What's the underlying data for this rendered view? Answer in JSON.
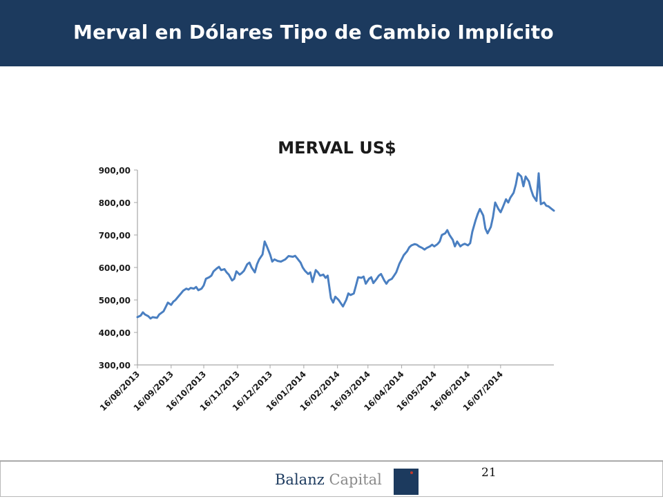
{
  "header": {
    "title": "Merval en Dólares Tipo de Cambio Implícito"
  },
  "footer": {
    "brand_primary": "Balanz",
    "brand_secondary": "Capital",
    "page_number": "21"
  },
  "colors": {
    "header_bg": "#1c3a5e",
    "line": "#4a7fc1",
    "axis": "#a6a6a6"
  },
  "chart_data": {
    "type": "line",
    "title": "MERVAL US$",
    "xlabel": "",
    "ylabel": "",
    "ylim": [
      300,
      900
    ],
    "yticks": [
      "300,00",
      "400,00",
      "500,00",
      "600,00",
      "700,00",
      "800,00",
      "900,00"
    ],
    "xticks": [
      "16/08/2013",
      "16/09/2013",
      "16/10/2013",
      "16/11/2013",
      "16/12/2013",
      "16/01/2014",
      "16/02/2014",
      "16/03/2014",
      "16/04/2014",
      "16/05/2014",
      "16/06/2014",
      "16/07/2014"
    ],
    "grid": false,
    "legend": "none",
    "series": [
      {
        "points": [
          [
            "2013-08-16",
            447
          ],
          [
            "2013-08-19",
            452
          ],
          [
            "2013-08-21",
            462
          ],
          [
            "2013-08-23",
            455
          ],
          [
            "2013-08-26",
            450
          ],
          [
            "2013-08-28",
            443
          ],
          [
            "2013-08-30",
            447
          ],
          [
            "2013-09-03",
            445
          ],
          [
            "2013-09-05",
            455
          ],
          [
            "2013-09-09",
            465
          ],
          [
            "2013-09-11",
            478
          ],
          [
            "2013-09-13",
            492
          ],
          [
            "2013-09-16",
            485
          ],
          [
            "2013-09-18",
            495
          ],
          [
            "2013-09-20",
            500
          ],
          [
            "2013-09-23",
            512
          ],
          [
            "2013-09-25",
            520
          ],
          [
            "2013-09-27",
            528
          ],
          [
            "2013-09-30",
            535
          ],
          [
            "2013-10-02",
            532
          ],
          [
            "2013-10-04",
            537
          ],
          [
            "2013-10-07",
            535
          ],
          [
            "2013-10-09",
            540
          ],
          [
            "2013-10-11",
            530
          ],
          [
            "2013-10-14",
            535
          ],
          [
            "2013-10-16",
            545
          ],
          [
            "2013-10-18",
            565
          ],
          [
            "2013-10-21",
            570
          ],
          [
            "2013-10-23",
            575
          ],
          [
            "2013-10-25",
            588
          ],
          [
            "2013-10-28",
            597
          ],
          [
            "2013-10-30",
            602
          ],
          [
            "2013-11-01",
            592
          ],
          [
            "2013-11-04",
            595
          ],
          [
            "2013-11-06",
            585
          ],
          [
            "2013-11-08",
            578
          ],
          [
            "2013-11-11",
            560
          ],
          [
            "2013-11-13",
            565
          ],
          [
            "2013-11-15",
            588
          ],
          [
            "2013-11-18",
            578
          ],
          [
            "2013-11-20",
            583
          ],
          [
            "2013-11-22",
            590
          ],
          [
            "2013-11-25",
            610
          ],
          [
            "2013-11-27",
            615
          ],
          [
            "2013-11-29",
            600
          ],
          [
            "2013-12-02",
            585
          ],
          [
            "2013-12-04",
            610
          ],
          [
            "2013-12-06",
            625
          ],
          [
            "2013-12-09",
            640
          ],
          [
            "2013-12-11",
            680
          ],
          [
            "2013-12-13",
            665
          ],
          [
            "2013-12-16",
            640
          ],
          [
            "2013-12-18",
            618
          ],
          [
            "2013-12-20",
            625
          ],
          [
            "2013-12-23",
            620
          ],
          [
            "2013-12-26",
            618
          ],
          [
            "2013-12-30",
            625
          ],
          [
            "2014-01-02",
            635
          ],
          [
            "2014-01-06",
            633
          ],
          [
            "2014-01-08",
            636
          ],
          [
            "2014-01-10",
            628
          ],
          [
            "2014-01-13",
            615
          ],
          [
            "2014-01-15",
            600
          ],
          [
            "2014-01-17",
            590
          ],
          [
            "2014-01-20",
            580
          ],
          [
            "2014-01-22",
            585
          ],
          [
            "2014-01-24",
            555
          ],
          [
            "2014-01-27",
            592
          ],
          [
            "2014-01-29",
            585
          ],
          [
            "2014-01-31",
            575
          ],
          [
            "2014-02-03",
            578
          ],
          [
            "2014-02-05",
            568
          ],
          [
            "2014-02-07",
            575
          ],
          [
            "2014-02-10",
            505
          ],
          [
            "2014-02-12",
            492
          ],
          [
            "2014-02-14",
            510
          ],
          [
            "2014-02-17",
            500
          ],
          [
            "2014-02-19",
            490
          ],
          [
            "2014-02-21",
            480
          ],
          [
            "2014-02-24",
            500
          ],
          [
            "2014-02-26",
            520
          ],
          [
            "2014-02-28",
            515
          ],
          [
            "2014-03-03",
            520
          ],
          [
            "2014-03-05",
            545
          ],
          [
            "2014-03-07",
            570
          ],
          [
            "2014-03-10",
            568
          ],
          [
            "2014-03-12",
            572
          ],
          [
            "2014-03-14",
            550
          ],
          [
            "2014-03-17",
            565
          ],
          [
            "2014-03-19",
            570
          ],
          [
            "2014-03-21",
            552
          ],
          [
            "2014-03-24",
            565
          ],
          [
            "2014-03-26",
            575
          ],
          [
            "2014-03-28",
            580
          ],
          [
            "2014-03-31",
            560
          ],
          [
            "2014-04-02",
            550
          ],
          [
            "2014-04-04",
            560
          ],
          [
            "2014-04-07",
            565
          ],
          [
            "2014-04-09",
            575
          ],
          [
            "2014-04-11",
            585
          ],
          [
            "2014-04-14",
            612
          ],
          [
            "2014-04-16",
            625
          ],
          [
            "2014-04-18",
            638
          ],
          [
            "2014-04-21",
            650
          ],
          [
            "2014-04-23",
            662
          ],
          [
            "2014-04-25",
            668
          ],
          [
            "2014-04-28",
            672
          ],
          [
            "2014-04-30",
            670
          ],
          [
            "2014-05-02",
            665
          ],
          [
            "2014-05-05",
            660
          ],
          [
            "2014-05-07",
            655
          ],
          [
            "2014-05-09",
            660
          ],
          [
            "2014-05-12",
            665
          ],
          [
            "2014-05-14",
            670
          ],
          [
            "2014-05-16",
            665
          ],
          [
            "2014-05-19",
            672
          ],
          [
            "2014-05-21",
            680
          ],
          [
            "2014-05-23",
            700
          ],
          [
            "2014-05-26",
            705
          ],
          [
            "2014-05-28",
            715
          ],
          [
            "2014-05-30",
            700
          ],
          [
            "2014-06-02",
            685
          ],
          [
            "2014-06-04",
            665
          ],
          [
            "2014-06-06",
            680
          ],
          [
            "2014-06-09",
            665
          ],
          [
            "2014-06-11",
            670
          ],
          [
            "2014-06-13",
            673
          ],
          [
            "2014-06-16",
            668
          ],
          [
            "2014-06-18",
            675
          ],
          [
            "2014-06-20",
            710
          ],
          [
            "2014-06-23",
            745
          ],
          [
            "2014-06-25",
            765
          ],
          [
            "2014-06-27",
            780
          ],
          [
            "2014-06-30",
            760
          ],
          [
            "2014-07-02",
            720
          ],
          [
            "2014-07-04",
            705
          ],
          [
            "2014-07-07",
            725
          ],
          [
            "2014-07-09",
            755
          ],
          [
            "2014-07-11",
            800
          ],
          [
            "2014-07-14",
            780
          ],
          [
            "2014-07-16",
            770
          ],
          [
            "2014-07-18",
            785
          ],
          [
            "2014-07-21",
            810
          ],
          [
            "2014-07-23",
            800
          ],
          [
            "2014-07-25",
            815
          ],
          [
            "2014-07-28",
            830
          ],
          [
            "2014-07-30",
            855
          ],
          [
            "2014-08-01",
            890
          ],
          [
            "2014-08-04",
            880
          ],
          [
            "2014-08-06",
            850
          ],
          [
            "2014-08-08",
            880
          ],
          [
            "2014-08-11",
            865
          ],
          [
            "2014-08-13",
            840
          ],
          [
            "2014-08-15",
            820
          ],
          [
            "2014-08-18",
            805
          ],
          [
            "2014-08-20",
            890
          ],
          [
            "2014-08-22",
            795
          ],
          [
            "2014-08-25",
            800
          ],
          [
            "2014-08-27",
            790
          ],
          [
            "2014-08-29",
            788
          ],
          [
            "2014-09-01",
            780
          ],
          [
            "2014-09-03",
            775
          ]
        ]
      }
    ]
  }
}
